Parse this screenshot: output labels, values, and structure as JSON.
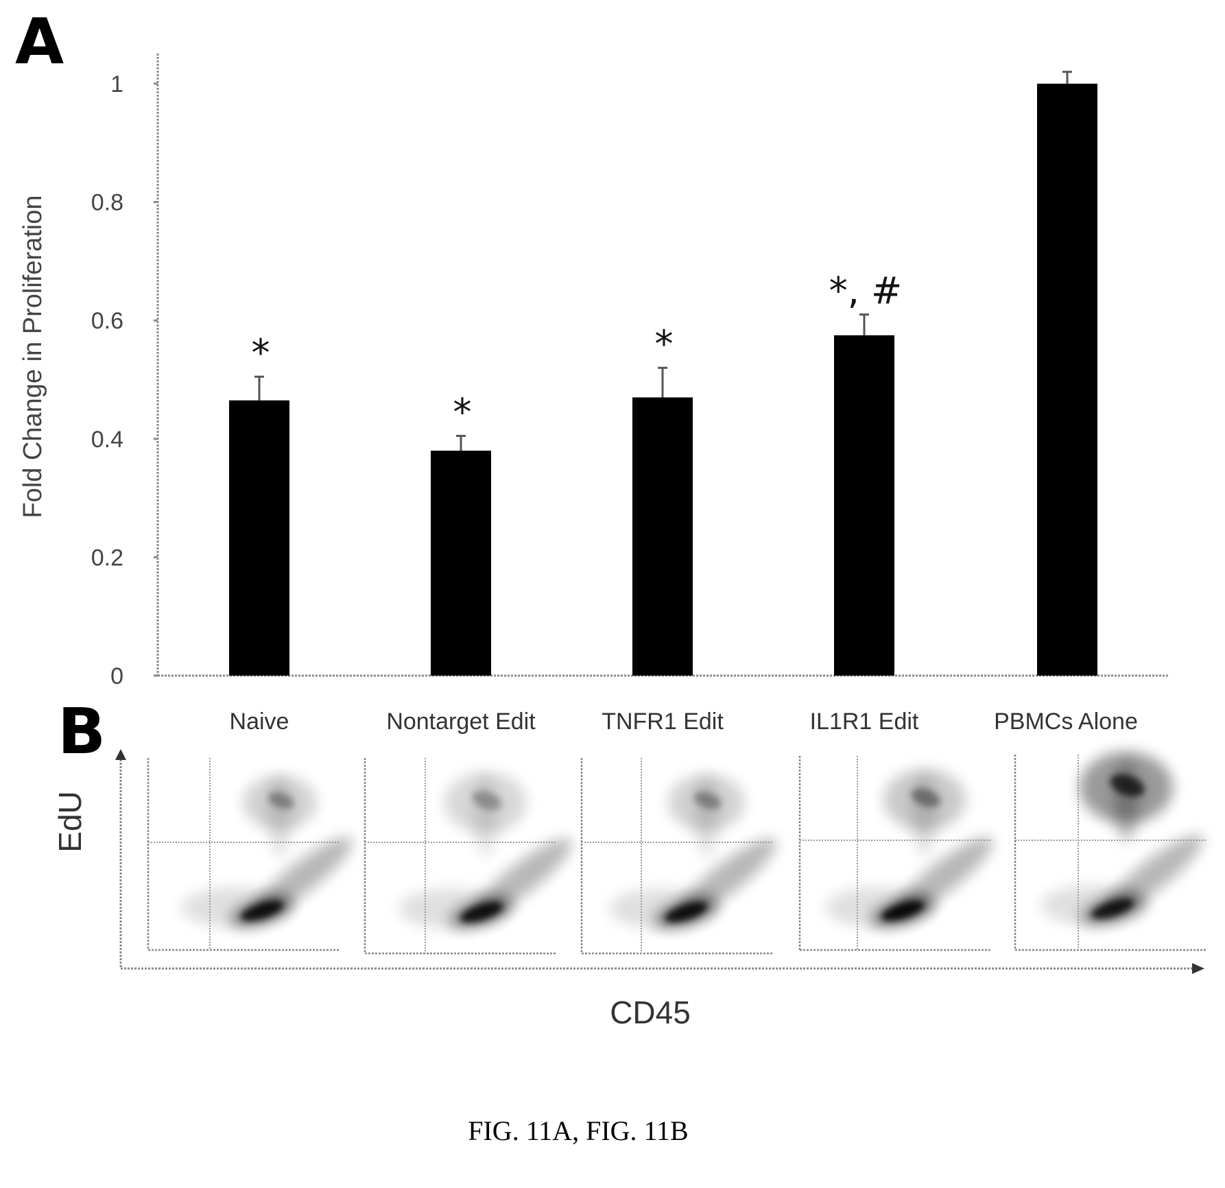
{
  "panel_a_letter": "A",
  "panel_b_letter": "B",
  "caption": "FIG. 11A, FIG. 11B",
  "chart_data": {
    "type": "bar",
    "title": "",
    "xlabel": "",
    "ylabel": "Fold Change in Proliferation",
    "ylim": [
      0,
      1
    ],
    "yticks": [
      "0",
      "0.2",
      "0.4",
      "0.6",
      "0.8",
      "1"
    ],
    "grid": false,
    "categories": [
      "Naive",
      "Nontarget Edit",
      "TNFR1 Edit",
      "IL1R1 Edit",
      "PBMCs Alone"
    ],
    "series": [
      {
        "values": [
          0.465,
          0.38,
          0.47,
          0.575,
          1.0
        ],
        "errors": [
          0.04,
          0.025,
          0.05,
          0.035,
          0.02
        ],
        "significance": [
          "*",
          "*",
          "*",
          "*, #",
          ""
        ],
        "color": "#000000"
      }
    ]
  },
  "flow_panels": {
    "x_axis_label": "CD45",
    "y_axis_label": "EdU",
    "samples": [
      "Naive",
      "Nontarget Edit",
      "TNFR1 Edit",
      "IL1R1 Edit",
      "PBMCs Alone"
    ]
  }
}
